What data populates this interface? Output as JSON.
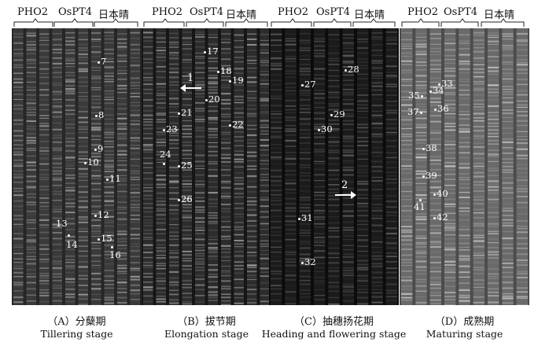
{
  "group_labels": [
    "PHO2",
    "OsPT4",
    "日本晴"
  ],
  "panels": [
    {
      "caption_cn": "（A）分蘖期",
      "caption_en": "Tillering stage",
      "markers": [
        "7",
        "8",
        "9",
        "10",
        "11",
        "12",
        "13",
        "14",
        "15",
        "16"
      ],
      "arrows": []
    },
    {
      "caption_cn": "（B）拔节期",
      "caption_en": "Elongation stage",
      "markers": [
        "17",
        "18",
        "19",
        "20",
        "21",
        "22",
        "23",
        "24",
        "25",
        "26"
      ],
      "arrows": [
        "1"
      ]
    },
    {
      "caption_cn": "（C）抽穗扬花期",
      "caption_en": "Heading and flowering stage",
      "markers": [
        "27",
        "28",
        "29",
        "30",
        "31",
        "32"
      ],
      "arrows": [
        "2"
      ]
    },
    {
      "caption_cn": "（D）成熟期",
      "caption_en": "Maturing stage",
      "markers": [
        "33",
        "34",
        "35",
        "36",
        "37",
        "38",
        "39",
        "40",
        "41",
        "42"
      ],
      "arrows": []
    }
  ]
}
